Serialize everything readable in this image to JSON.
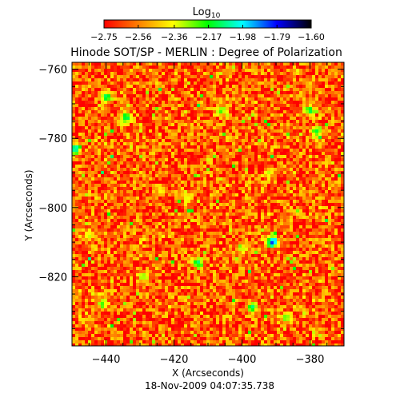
{
  "chart_data": {
    "type": "heatmap",
    "title": "Hinode SOT/SP - MERLIN : Degree of Polarization",
    "xlabel": "X (Arcseconds)",
    "ylabel": "Y (Arcseconds)",
    "footer": "18-Nov-2009 04:07:35.738",
    "xlim": [
      -450,
      -370
    ],
    "ylim": [
      -840,
      -758
    ],
    "x_ticks": [
      -440,
      -420,
      -400,
      -380
    ],
    "y_ticks": [
      -760,
      -780,
      -800,
      -820
    ],
    "x_tick_labels": [
      "−440",
      "−420",
      "−400",
      "−380"
    ],
    "y_tick_labels": [
      "−760",
      "−780",
      "−800",
      "−820"
    ],
    "colorbar": {
      "label_base": "Log",
      "label_sub": "10",
      "range": [
        -2.75,
        -1.6
      ],
      "ticks": [
        -2.75,
        -2.56,
        -2.36,
        -2.17,
        -1.98,
        -1.79,
        -1.6
      ],
      "tick_labels": [
        "−2.75",
        "−2.56",
        "−2.36",
        "−2.17",
        "−1.98",
        "−1.79",
        "−1.60"
      ],
      "colors": [
        "#ff0000",
        "#ff8000",
        "#ffff00",
        "#00ff00",
        "#00ffff",
        "#0000ff",
        "#000000"
      ]
    },
    "background_level": -2.62,
    "features": [
      {
        "x": -391,
        "y": -810,
        "value": -1.78
      },
      {
        "x": -449,
        "y": -783,
        "value": -1.95
      },
      {
        "x": -440,
        "y": -768,
        "value": -2.05
      },
      {
        "x": -434,
        "y": -774,
        "value": -2.05
      },
      {
        "x": -413,
        "y": -816,
        "value": -2.05
      },
      {
        "x": -397,
        "y": -829,
        "value": -2.05
      },
      {
        "x": -387,
        "y": -832,
        "value": -2.2
      },
      {
        "x": -378,
        "y": -778,
        "value": -2.1
      },
      {
        "x": -380,
        "y": -772,
        "value": -2.1
      },
      {
        "x": -406,
        "y": -772,
        "value": -2.2
      },
      {
        "x": -441,
        "y": -828,
        "value": -2.2
      },
      {
        "x": -429,
        "y": -820,
        "value": -2.25
      },
      {
        "x": -416,
        "y": -797,
        "value": -2.3
      },
      {
        "x": -400,
        "y": -812,
        "value": -2.3
      },
      {
        "x": -445,
        "y": -808,
        "value": -2.3
      },
      {
        "x": -392,
        "y": -790,
        "value": -2.3
      },
      {
        "x": -424,
        "y": -795,
        "value": -2.35
      }
    ]
  }
}
